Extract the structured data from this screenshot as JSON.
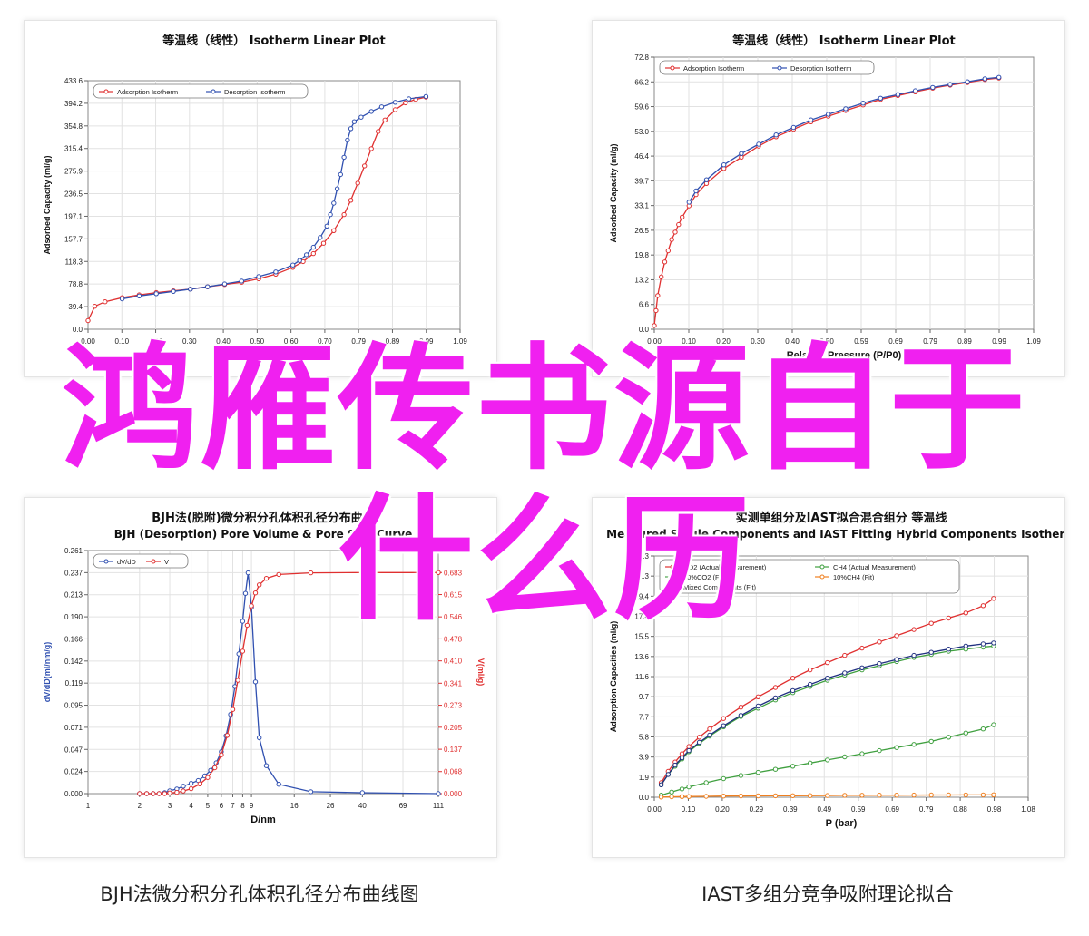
{
  "captions": {
    "bottom_left": "BJH法微分积分孔体积孔径分布曲线图",
    "bottom_right": "IAST多组分竞争吸附理论拟合"
  },
  "overlay": {
    "line1": "鸿雁传书源自于",
    "line2": "什么历"
  },
  "colors": {
    "overlay": "#f020f0",
    "series_red": "#e03030",
    "series_blue": "#3050b0",
    "series_green": "#40a040",
    "series_orange": "#f08020",
    "series_navy": "#203080"
  },
  "chart_data": [
    {
      "type": "line",
      "title": "等温线（线性） Isotherm Linear Plot",
      "xlabel": "",
      "ylabel": "Adsorbed Capacity (ml/g)",
      "xticks": [
        "0.00",
        "0.10",
        "0.20",
        "0.30",
        "0.40",
        "0.50",
        "0.60",
        "0.70",
        "0.79",
        "0.89",
        "0.99",
        "1.09"
      ],
      "yticks": [
        "0.0",
        "39.4",
        "78.8",
        "118.3",
        "157.7",
        "197.1",
        "236.5",
        "275.9",
        "315.4",
        "354.8",
        "394.2",
        "433.6"
      ],
      "xlim": [
        0,
        1.09
      ],
      "ylim": [
        0,
        433.6
      ],
      "legend_position": "top-left",
      "series": [
        {
          "name": "Adsorption Isotherm",
          "color": "#e03030",
          "x": [
            0.0,
            0.02,
            0.05,
            0.1,
            0.15,
            0.2,
            0.25,
            0.3,
            0.35,
            0.4,
            0.45,
            0.5,
            0.55,
            0.6,
            0.63,
            0.66,
            0.69,
            0.72,
            0.75,
            0.77,
            0.79,
            0.81,
            0.83,
            0.85,
            0.87,
            0.9,
            0.93,
            0.96,
            0.99
          ],
          "y": [
            15,
            40,
            48,
            55,
            60,
            64,
            67,
            70,
            74,
            78,
            82,
            88,
            96,
            108,
            118,
            132,
            150,
            172,
            200,
            225,
            255,
            285,
            315,
            345,
            365,
            383,
            395,
            401,
            405
          ]
        },
        {
          "name": "Desorption Isotherm",
          "color": "#3050b0",
          "x": [
            0.1,
            0.15,
            0.2,
            0.25,
            0.3,
            0.35,
            0.4,
            0.45,
            0.5,
            0.55,
            0.6,
            0.62,
            0.64,
            0.66,
            0.68,
            0.7,
            0.71,
            0.72,
            0.73,
            0.74,
            0.75,
            0.76,
            0.77,
            0.78,
            0.8,
            0.83,
            0.86,
            0.9,
            0.94,
            0.99
          ],
          "y": [
            53,
            58,
            62,
            66,
            70,
            74,
            79,
            84,
            92,
            100,
            112,
            120,
            130,
            143,
            160,
            180,
            200,
            220,
            245,
            270,
            300,
            330,
            350,
            362,
            370,
            380,
            388,
            396,
            402,
            406
          ]
        }
      ]
    },
    {
      "type": "line",
      "title": "等温线（线性） Isotherm Linear Plot",
      "xlabel": "Relative Pressure (P/P0)",
      "ylabel": "Adsorbed Capacity (ml/g)",
      "xticks": [
        "0.00",
        "0.10",
        "0.20",
        "0.30",
        "0.40",
        "0.50",
        "0.59",
        "0.69",
        "0.79",
        "0.89",
        "0.99",
        "1.09"
      ],
      "yticks": [
        "0.0",
        "6.6",
        "13.2",
        "19.8",
        "26.5",
        "33.1",
        "39.7",
        "46.4",
        "53.0",
        "59.6",
        "66.2",
        "72.8"
      ],
      "xlim": [
        0,
        1.09
      ],
      "ylim": [
        0,
        72.8
      ],
      "legend_position": "top-left",
      "series": [
        {
          "name": "Adsorption Isotherm",
          "color": "#e03030",
          "x": [
            0.0,
            0.005,
            0.01,
            0.02,
            0.03,
            0.04,
            0.05,
            0.06,
            0.07,
            0.08,
            0.1,
            0.12,
            0.15,
            0.2,
            0.25,
            0.3,
            0.35,
            0.4,
            0.45,
            0.5,
            0.55,
            0.6,
            0.65,
            0.7,
            0.75,
            0.8,
            0.85,
            0.9,
            0.95,
            0.99
          ],
          "y": [
            1,
            5,
            9,
            14,
            18,
            21,
            24,
            26,
            28,
            30,
            33,
            36,
            39,
            43,
            46,
            49,
            51.5,
            53.5,
            55.5,
            57,
            58.5,
            60,
            61.5,
            62.5,
            63.5,
            64.5,
            65.3,
            66,
            66.8,
            67.2
          ]
        },
        {
          "name": "Desorption Isotherm",
          "color": "#3050b0",
          "x": [
            0.1,
            0.12,
            0.15,
            0.2,
            0.25,
            0.3,
            0.35,
            0.4,
            0.45,
            0.5,
            0.55,
            0.6,
            0.65,
            0.7,
            0.75,
            0.8,
            0.85,
            0.9,
            0.95,
            0.99
          ],
          "y": [
            34,
            37,
            40,
            44,
            47,
            49.5,
            52,
            54,
            56,
            57.5,
            59,
            60.5,
            61.8,
            62.8,
            63.8,
            64.7,
            65.5,
            66.2,
            67,
            67.4
          ]
        }
      ]
    },
    {
      "type": "line",
      "title": "BJH法(脱附)微分积分孔体积孔径分布曲线",
      "subtitle": "BJH (Desorption) Pore Volume & Pore Size Curve",
      "xlabel": "D/nm",
      "ylabel": "dV/dD(ml/nm/g)",
      "ylabel_right": "V(ml/g)",
      "xticks": [
        "1",
        "2",
        "3",
        "4",
        "5",
        "6",
        "7",
        "8",
        "9",
        "16",
        "26",
        "40",
        "69",
        "111"
      ],
      "yticks": [
        "0.000",
        "0.024",
        "0.047",
        "0.071",
        "0.095",
        "0.119",
        "0.142",
        "0.166",
        "0.190",
        "0.213",
        "0.237",
        "0.261"
      ],
      "yticks_right": [
        "0.000",
        "0.068",
        "0.137",
        "0.205",
        "0.273",
        "0.341",
        "0.410",
        "0.478",
        "0.546",
        "0.615",
        "0.683"
      ],
      "xlim": [
        1,
        111
      ],
      "ylim": [
        0,
        0.261
      ],
      "ylim_right": [
        0,
        0.751
      ],
      "legend_position": "top-left",
      "series": [
        {
          "name": "dV/dD",
          "color": "#3050b0",
          "axis": "left",
          "x": [
            2,
            2.2,
            2.4,
            2.6,
            2.8,
            3,
            3.3,
            3.6,
            4,
            4.4,
            4.8,
            5.2,
            5.6,
            6,
            6.4,
            6.8,
            7.2,
            7.6,
            8,
            8.3,
            8.6,
            9,
            9.5,
            10,
            11,
            13,
            20,
            40,
            111
          ],
          "y": [
            0,
            0,
            0,
            0,
            0.001,
            0.003,
            0.005,
            0.008,
            0.011,
            0.014,
            0.019,
            0.025,
            0.033,
            0.045,
            0.062,
            0.085,
            0.115,
            0.15,
            0.185,
            0.215,
            0.237,
            0.2,
            0.12,
            0.06,
            0.03,
            0.01,
            0.002,
            0.001,
            0
          ]
        },
        {
          "name": "V",
          "color": "#e03030",
          "axis": "right",
          "x": [
            2,
            2.2,
            2.4,
            2.6,
            2.8,
            3,
            3.3,
            3.6,
            4,
            4.5,
            5,
            5.5,
            6,
            6.5,
            7,
            7.5,
            8,
            8.5,
            9,
            9.5,
            10,
            11,
            13,
            20,
            40,
            111
          ],
          "y": [
            0,
            0,
            0,
            0,
            0,
            0.002,
            0.004,
            0.008,
            0.015,
            0.03,
            0.05,
            0.08,
            0.12,
            0.18,
            0.26,
            0.35,
            0.44,
            0.52,
            0.58,
            0.62,
            0.645,
            0.665,
            0.677,
            0.682,
            0.683,
            0.683
          ]
        }
      ]
    },
    {
      "type": "line",
      "title": "实测单组分及IAST拟合混合组分 等温线",
      "subtitle": "Measured Single Components and IAST Fitting Hybrid Components Isotherm",
      "xlabel": "P (bar)",
      "ylabel": "Adsorption Capacities (ml/g)",
      "xticks": [
        "0.00",
        "0.10",
        "0.20",
        "0.29",
        "0.39",
        "0.49",
        "0.59",
        "0.69",
        "0.79",
        "0.88",
        "0.98",
        "1.08"
      ],
      "yticks": [
        "0.0",
        "1.9",
        "3.9",
        "5.8",
        "7.7",
        "9.7",
        "11.6",
        "13.6",
        "15.5",
        "17.4",
        "19.4",
        "21.3",
        "23.3"
      ],
      "xlim": [
        0,
        1.08
      ],
      "ylim": [
        0,
        23.3
      ],
      "legend_position": "top-left",
      "series": [
        {
          "name": "CO2 (Actual Measurement)",
          "color": "#e03030",
          "x": [
            0.02,
            0.04,
            0.06,
            0.08,
            0.1,
            0.13,
            0.16,
            0.2,
            0.25,
            0.3,
            0.35,
            0.4,
            0.45,
            0.5,
            0.55,
            0.6,
            0.65,
            0.7,
            0.75,
            0.8,
            0.85,
            0.9,
            0.95,
            0.98
          ],
          "y": [
            1.4,
            2.5,
            3.4,
            4.2,
            4.9,
            5.8,
            6.6,
            7.6,
            8.7,
            9.7,
            10.6,
            11.5,
            12.3,
            13.0,
            13.7,
            14.4,
            15.0,
            15.6,
            16.2,
            16.8,
            17.3,
            17.8,
            18.5,
            19.2
          ]
        },
        {
          "name": "CH4 (Actual Measurement)",
          "color": "#40a040",
          "x": [
            0.02,
            0.05,
            0.08,
            0.1,
            0.15,
            0.2,
            0.25,
            0.3,
            0.35,
            0.4,
            0.45,
            0.5,
            0.55,
            0.6,
            0.65,
            0.7,
            0.75,
            0.8,
            0.85,
            0.9,
            0.95,
            0.98
          ],
          "y": [
            0.2,
            0.5,
            0.8,
            1.0,
            1.4,
            1.8,
            2.1,
            2.4,
            2.7,
            3.0,
            3.3,
            3.6,
            3.9,
            4.2,
            4.5,
            4.8,
            5.1,
            5.4,
            5.8,
            6.2,
            6.6,
            7.0
          ]
        },
        {
          "name": "90%CO2 (Fit)",
          "color": "#40a040",
          "x": [
            0.02,
            0.04,
            0.06,
            0.08,
            0.1,
            0.13,
            0.16,
            0.2,
            0.25,
            0.3,
            0.35,
            0.4,
            0.45,
            0.5,
            0.55,
            0.6,
            0.65,
            0.7,
            0.75,
            0.8,
            0.85,
            0.9,
            0.95,
            0.98
          ],
          "y": [
            1.2,
            2.2,
            3.0,
            3.7,
            4.4,
            5.2,
            5.9,
            6.8,
            7.8,
            8.6,
            9.4,
            10.1,
            10.7,
            11.3,
            11.8,
            12.3,
            12.7,
            13.1,
            13.5,
            13.8,
            14.1,
            14.3,
            14.5,
            14.6
          ]
        },
        {
          "name": "10%CH4 (Fit)",
          "color": "#f08020",
          "x": [
            0.02,
            0.05,
            0.08,
            0.1,
            0.15,
            0.2,
            0.25,
            0.3,
            0.35,
            0.4,
            0.45,
            0.5,
            0.55,
            0.6,
            0.65,
            0.7,
            0.75,
            0.8,
            0.85,
            0.9,
            0.95,
            0.98
          ],
          "y": [
            0.02,
            0.04,
            0.06,
            0.07,
            0.09,
            0.11,
            0.12,
            0.13,
            0.14,
            0.15,
            0.16,
            0.17,
            0.18,
            0.19,
            0.2,
            0.2,
            0.21,
            0.22,
            0.22,
            0.23,
            0.23,
            0.24
          ]
        },
        {
          "name": "Mixed Components (Fit)",
          "color": "#203080",
          "x": [
            0.02,
            0.04,
            0.06,
            0.08,
            0.1,
            0.13,
            0.16,
            0.2,
            0.25,
            0.3,
            0.35,
            0.4,
            0.45,
            0.5,
            0.55,
            0.6,
            0.65,
            0.7,
            0.75,
            0.8,
            0.85,
            0.9,
            0.95,
            0.98
          ],
          "y": [
            1.2,
            2.2,
            3.1,
            3.8,
            4.5,
            5.3,
            6.0,
            6.9,
            7.9,
            8.8,
            9.6,
            10.3,
            10.9,
            11.5,
            12.0,
            12.5,
            12.9,
            13.3,
            13.7,
            14.0,
            14.3,
            14.6,
            14.8,
            14.9
          ]
        }
      ]
    }
  ]
}
